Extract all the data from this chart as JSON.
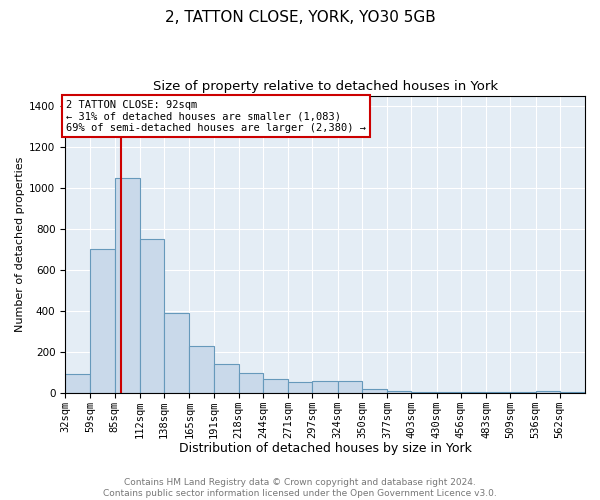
{
  "title1": "2, TATTON CLOSE, YORK, YO30 5GB",
  "title2": "Size of property relative to detached houses in York",
  "xlabel": "Distribution of detached houses by size in York",
  "ylabel": "Number of detached properties",
  "bin_labels": [
    "32sqm",
    "59sqm",
    "85sqm",
    "112sqm",
    "138sqm",
    "165sqm",
    "191sqm",
    "218sqm",
    "244sqm",
    "271sqm",
    "297sqm",
    "324sqm",
    "350sqm",
    "377sqm",
    "403sqm",
    "430sqm",
    "456sqm",
    "483sqm",
    "509sqm",
    "536sqm",
    "562sqm"
  ],
  "bin_edges": [
    32,
    59,
    85,
    112,
    138,
    165,
    191,
    218,
    244,
    271,
    297,
    324,
    350,
    377,
    403,
    430,
    456,
    483,
    509,
    536,
    562,
    589
  ],
  "bar_heights": [
    90,
    700,
    1050,
    750,
    390,
    230,
    140,
    95,
    65,
    50,
    55,
    55,
    20,
    8,
    5,
    5,
    3,
    3,
    2,
    8,
    2
  ],
  "bar_color": "#c9d9ea",
  "bar_edge_color": "#6699bb",
  "bg_color": "#e4edf5",
  "grid_color": "#ffffff",
  "property_line_x": 92,
  "property_line_color": "#cc0000",
  "annotation_text": "2 TATTON CLOSE: 92sqm\n← 31% of detached houses are smaller (1,083)\n69% of semi-detached houses are larger (2,380) →",
  "annotation_box_color": "#ffffff",
  "annotation_box_edge": "#cc0000",
  "ylim": [
    0,
    1450
  ],
  "yticks": [
    0,
    200,
    400,
    600,
    800,
    1000,
    1200,
    1400
  ],
  "footer_text": "Contains HM Land Registry data © Crown copyright and database right 2024.\nContains public sector information licensed under the Open Government Licence v3.0.",
  "title1_fontsize": 11,
  "title2_fontsize": 9.5,
  "xlabel_fontsize": 9,
  "ylabel_fontsize": 8,
  "tick_fontsize": 7.5,
  "annotation_fontsize": 7.5,
  "footer_fontsize": 6.5
}
